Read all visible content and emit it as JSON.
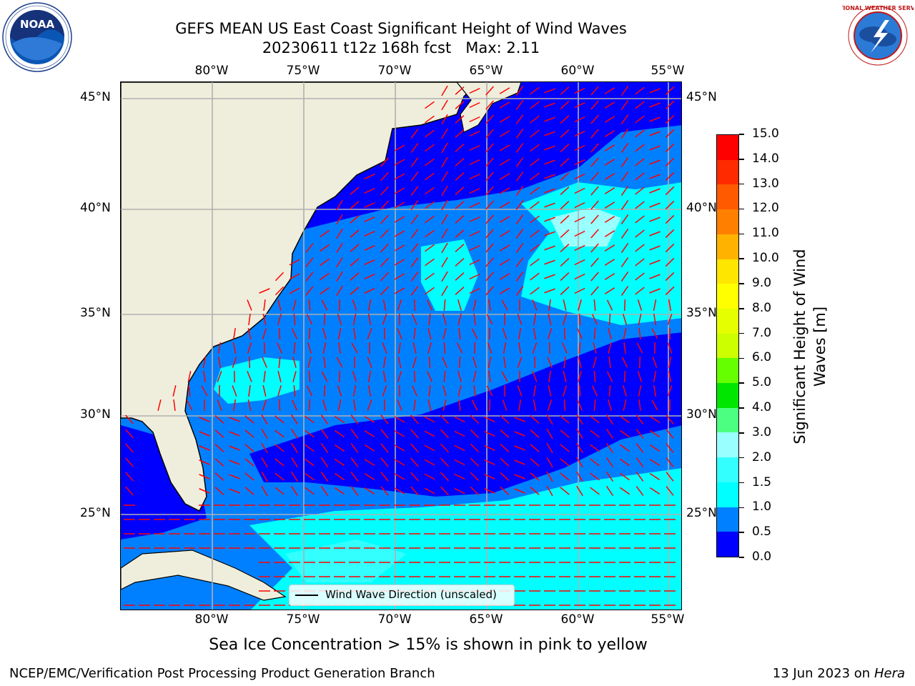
{
  "title": {
    "line1": "GEFS MEAN US East Coast Significant Height of Wind Waves",
    "line2": "20230611 t12z 168h fcst   Max: 2.11"
  },
  "logos": {
    "left": "noaa-logo",
    "left_text": "NOAA",
    "right": "nws-logo",
    "right_text": "NATIONAL WEATHER SERVICE"
  },
  "axes": {
    "lon_labels": [
      "80°W",
      "75°W",
      "70°W",
      "65°W",
      "60°W",
      "55°W"
    ],
    "lat_labels": [
      "45°N",
      "40°N",
      "35°N",
      "30°N",
      "25°N"
    ]
  },
  "legend": {
    "label": "Wind Wave Direction (unscaled)"
  },
  "colorbar": {
    "label_line1": "Significant Height of Wind",
    "label_line2": "Waves [m]",
    "ticks": [
      "0.0",
      "0.5",
      "1.0",
      "1.5",
      "2.0",
      "3.0",
      "4.0",
      "5.0",
      "6.0",
      "7.0",
      "8.0",
      "9.0",
      "10.0",
      "11.0",
      "12.0",
      "13.0",
      "14.0",
      "15.0"
    ],
    "colors": [
      "#0000ff",
      "#0080ff",
      "#00ffff",
      "#33ffff",
      "#99ffff",
      "#4dff80",
      "#00e600",
      "#66ff00",
      "#ccff00",
      "#e6ff00",
      "#ffff00",
      "#ffe600",
      "#ffb300",
      "#ff8000",
      "#ff5a00",
      "#ff2a00",
      "#ff0000"
    ]
  },
  "colors": {
    "land": "#efeedc",
    "arrow": "#ff0000",
    "grid": "#b0b0b0"
  },
  "footer": {
    "note": "Sea Ice Concentration > 15% is shown in pink to yellow",
    "credit": "NCEP/EMC/Verification Post Processing Product Generation Branch",
    "date": "13 Jun 2023 on",
    "host": "Hera"
  }
}
